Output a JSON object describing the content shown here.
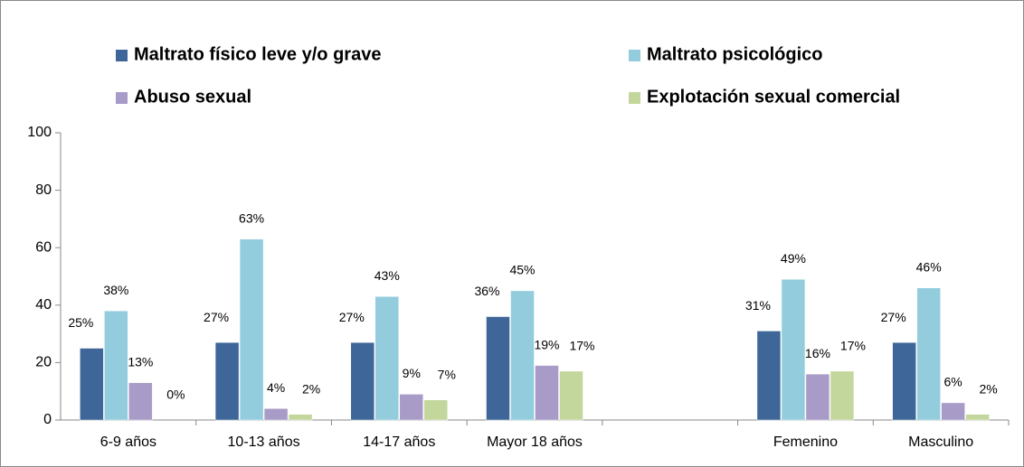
{
  "chart_data": {
    "type": "bar",
    "categories": [
      "6-9 años",
      "10-13 años",
      "14-17 años",
      "Mayor 18 años",
      null,
      "Femenino",
      "Masculino"
    ],
    "series": [
      {
        "name": "Maltrato físico leve y/o grave",
        "color": "#3f6698",
        "values": [
          25,
          27,
          27,
          36,
          null,
          31,
          27
        ],
        "value_labels": [
          "25%",
          "27%",
          "27%",
          "36%",
          null,
          "31%",
          "27%"
        ]
      },
      {
        "name": "Maltrato psicológico",
        "color": "#93cddd",
        "values": [
          38,
          63,
          43,
          45,
          null,
          49,
          46
        ],
        "value_labels": [
          "38%",
          "63%",
          "43%",
          "45%",
          null,
          "49%",
          "46%"
        ]
      },
      {
        "name": "Abuso sexual",
        "color": "#a99bc7",
        "values": [
          13,
          4,
          9,
          19,
          null,
          16,
          6
        ],
        "value_labels": [
          "13%",
          "4%",
          "9%",
          "19%",
          null,
          "16%",
          "6%"
        ]
      },
      {
        "name": "Explotación sexual comercial",
        "color": "#c3d69b",
        "values": [
          0,
          2,
          7,
          17,
          null,
          17,
          2
        ],
        "value_labels": [
          "0%",
          "2%",
          "7%",
          "17%",
          null,
          "17%",
          "2%"
        ]
      }
    ],
    "ylim": [
      0,
      100
    ],
    "yticks": [
      0,
      20,
      40,
      60,
      80,
      100
    ],
    "grid": false,
    "legend": "top"
  }
}
